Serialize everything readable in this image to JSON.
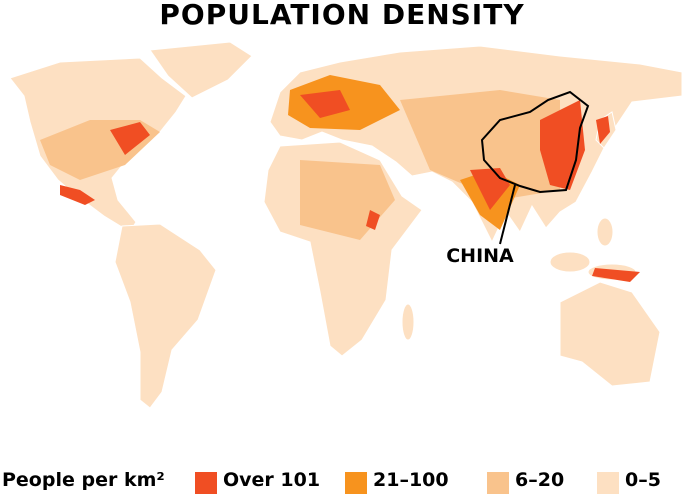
{
  "title": "POPULATION DENSITY",
  "annotation": "CHINA",
  "legend": {
    "title": "People per km²",
    "items": [
      {
        "label": "Over 101",
        "color": "#f04e23"
      },
      {
        "label": "21–100",
        "color": "#f7931e"
      },
      {
        "label": "6–20",
        "color": "#f9c38c"
      },
      {
        "label": "0–5",
        "color": "#fde0c2"
      }
    ]
  }
}
